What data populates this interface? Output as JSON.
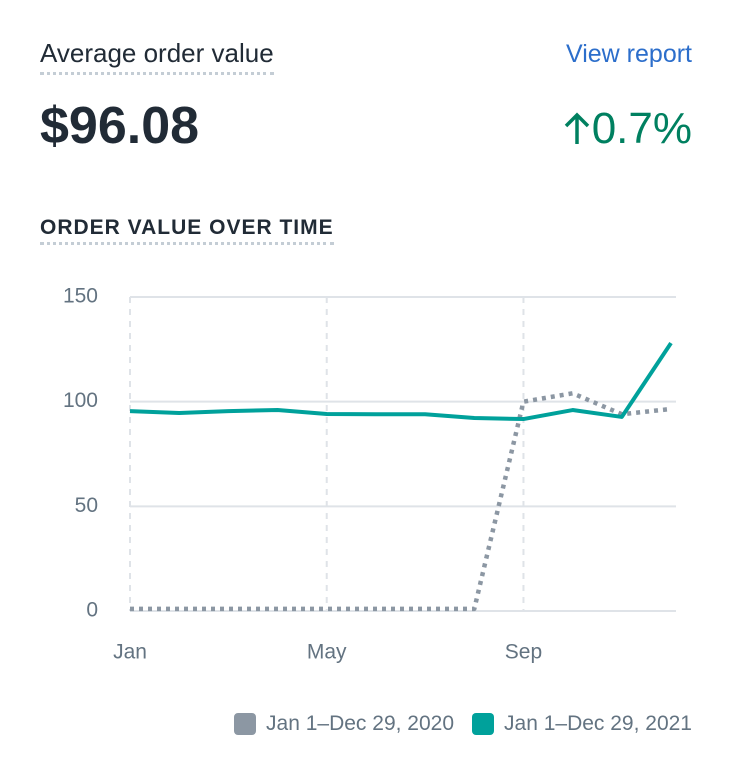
{
  "header": {
    "title": "Average order value",
    "link": "View report",
    "value": "$96.08",
    "change": "0.7%",
    "subtitle": "ORDER VALUE OVER TIME"
  },
  "chart_data": {
    "type": "line",
    "categories": [
      "Jan",
      null,
      null,
      null,
      "May",
      null,
      null,
      null,
      "Sep",
      null,
      null,
      null
    ],
    "series": [
      {
        "name": "Jan 1–Dec 29, 2020",
        "color": "#8c97a3",
        "style": "dotted",
        "values": [
          1,
          1,
          1,
          1,
          1,
          1,
          1,
          1,
          100,
          104,
          94,
          96.5
        ]
      },
      {
        "name": "Jan 1–Dec 29, 2021",
        "color": "#00a19b",
        "style": "solid",
        "values": [
          95.5,
          94.6,
          95.5,
          96,
          94.1,
          94,
          94,
          92.2,
          91.7,
          96,
          92.7,
          128
        ]
      }
    ],
    "ylim": [
      0,
      150
    ],
    "yticks": [
      0,
      50,
      100,
      150
    ],
    "grid": true
  }
}
